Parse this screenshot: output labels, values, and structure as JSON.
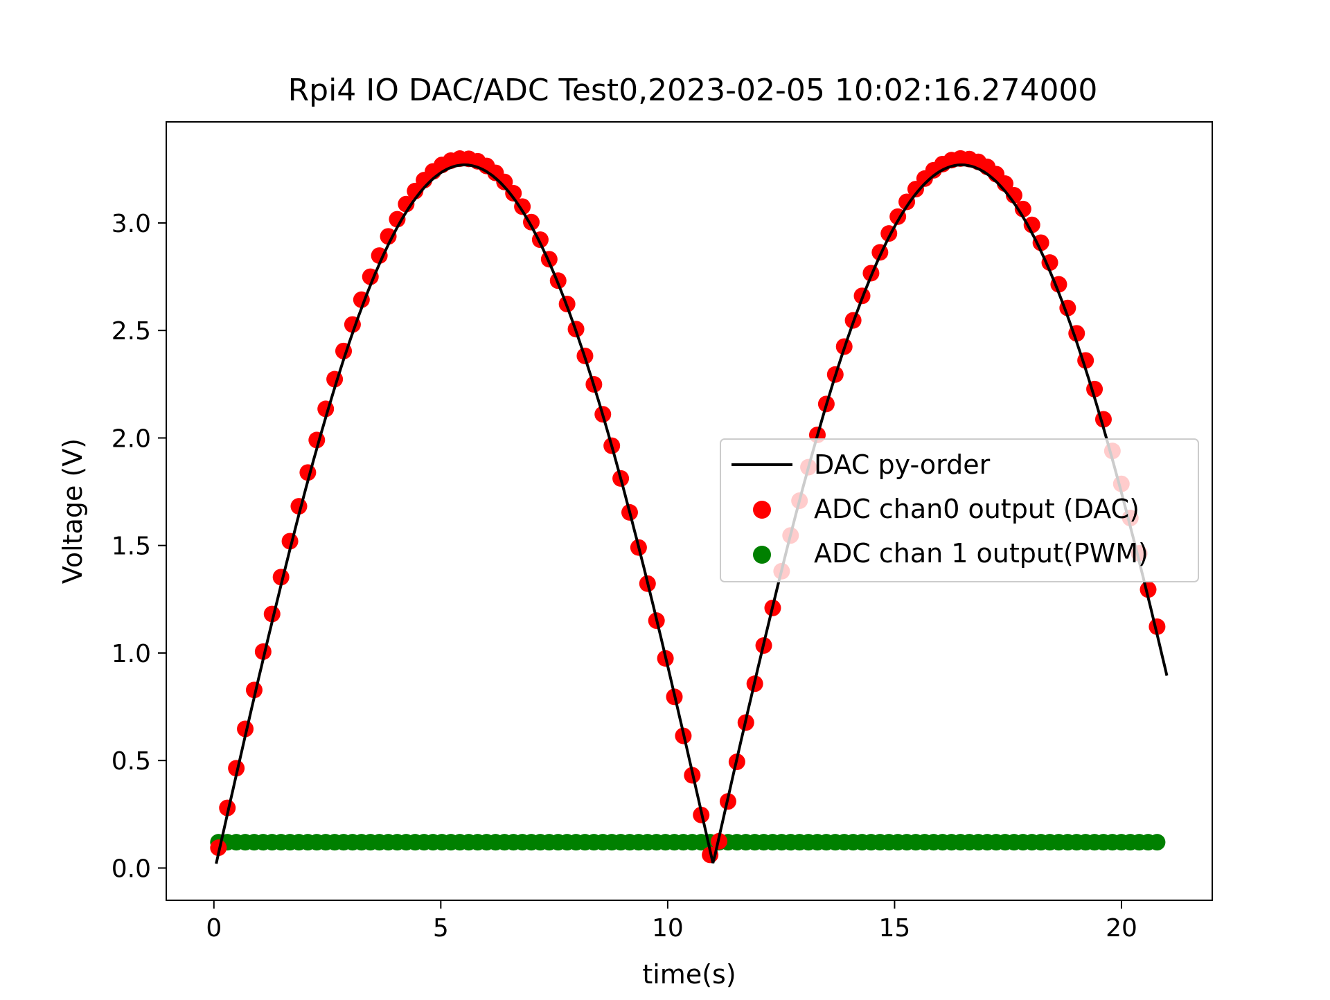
{
  "chart_data": {
    "type": "line",
    "title": "Rpi4 IO DAC/ADC Test0,2023-02-05 10:02:16.274000",
    "xlabel": "time(s)",
    "ylabel": "Voltage (V)",
    "xlim": [
      -1.05,
      22.0
    ],
    "ylim": [
      -0.15,
      3.47
    ],
    "xticks": [
      0,
      5,
      10,
      15,
      20
    ],
    "yticks": [
      0.0,
      0.5,
      1.0,
      1.5,
      2.0,
      2.5,
      3.0
    ],
    "xtick_labels": [
      "0",
      "5",
      "10",
      "15",
      "20"
    ],
    "ytick_labels": [
      "0.0",
      "0.5",
      "1.0",
      "1.5",
      "2.0",
      "2.5",
      "3.0"
    ],
    "grid": false,
    "legend_position": "center-right",
    "series": [
      {
        "name": "DAC py-order",
        "kind": "line",
        "color": "#000000",
        "x": [
          0.05,
          5.5,
          11.0,
          16.5,
          21.0
        ],
        "y": [
          0.0,
          3.3,
          0.05,
          3.3,
          1.0
        ],
        "shape": "abs-sine"
      },
      {
        "name": "ADC chan0 output (DAC)",
        "kind": "scatter",
        "color": "#ff0000",
        "x_start": 0.1,
        "x_step": 0.197,
        "count": 106,
        "peak": 3.3,
        "period_half": 11.0
      },
      {
        "name": "ADC chan 1 output(PWM)",
        "kind": "scatter",
        "color": "#008000",
        "x_start": 0.1,
        "x_step": 0.197,
        "count": 106,
        "level": 0.12
      }
    ]
  }
}
